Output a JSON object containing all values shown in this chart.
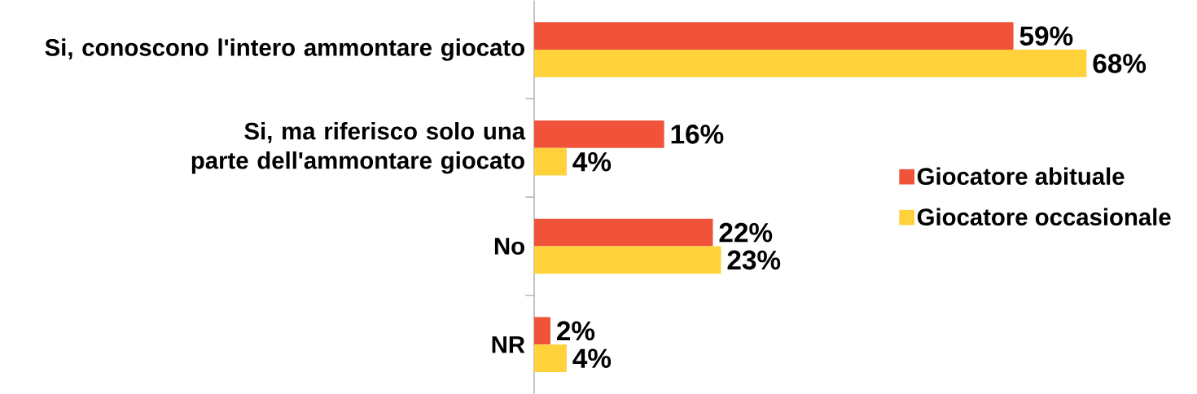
{
  "chart_data": {
    "type": "bar",
    "orientation": "horizontal",
    "legend": "right",
    "categories": [
      "Si, conoscono l'intero ammontare giocato",
      "Si, ma riferisco solo una parte dell'ammontare giocato",
      "No",
      "NR"
    ],
    "series": [
      {
        "name": "Giocatore abituale",
        "color": "#f0533a",
        "values": [
          59,
          16,
          22,
          2
        ],
        "value_labels": [
          "59%",
          "16%",
          "22%",
          "2%"
        ]
      },
      {
        "name": "Giocatore occasionale",
        "color": "#ffd13b",
        "values": [
          68,
          4,
          23,
          4
        ],
        "value_labels": [
          "68%",
          "4%",
          "23%",
          "4%"
        ]
      }
    ]
  }
}
